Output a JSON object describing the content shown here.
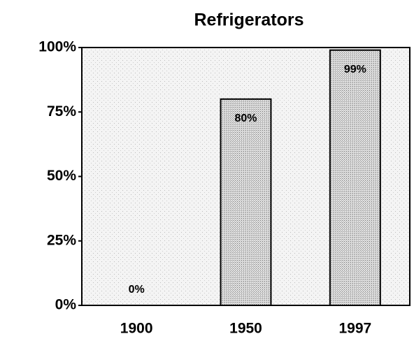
{
  "chart_data": {
    "type": "bar",
    "title": "Refrigerators",
    "categories": [
      "1900",
      "1950",
      "1997"
    ],
    "values": [
      0,
      80,
      99
    ],
    "value_labels": [
      "0%",
      "80%",
      "99%"
    ],
    "ylim": [
      0,
      100
    ],
    "yticks": [
      {
        "value": 0,
        "label": "0%"
      },
      {
        "value": 25,
        "label": "25%"
      },
      {
        "value": 50,
        "label": "50%"
      },
      {
        "value": 75,
        "label": "75%"
      },
      {
        "value": 100,
        "label": "100%"
      }
    ],
    "grid": false
  }
}
